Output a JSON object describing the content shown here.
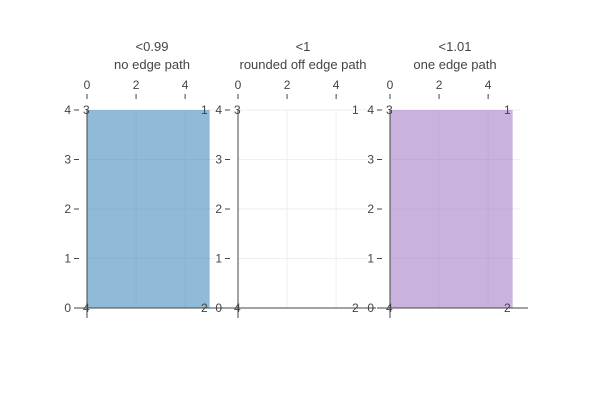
{
  "chart_data": [
    {
      "type": "area",
      "title_lines": [
        "<0.99",
        "no edge path"
      ],
      "fill": "#1f77b4",
      "fill_opacity": 0.5,
      "x_ticks": [
        0,
        2,
        4
      ],
      "y_ticks": [
        0,
        1,
        2,
        3,
        4
      ],
      "xlim": [
        0,
        5.3
      ],
      "ylim": [
        0,
        4
      ],
      "polygon": [
        {
          "x": 5,
          "y": 4
        },
        {
          "x": 5,
          "y": 0
        },
        {
          "x": 0,
          "y": 0
        },
        {
          "x": 0,
          "y": 4
        }
      ],
      "corner_labels": [
        {
          "x": 5,
          "y": 4,
          "text": "1"
        },
        {
          "x": 5,
          "y": 0,
          "text": "2"
        },
        {
          "x": 0,
          "y": 4,
          "text": "3"
        },
        {
          "x": 0,
          "y": 0,
          "text": "4"
        }
      ]
    },
    {
      "type": "area",
      "title_lines": [
        "<1",
        "rounded off edge path"
      ],
      "fill": "none",
      "fill_opacity": 0,
      "x_ticks": [
        0,
        2,
        4
      ],
      "y_ticks": [
        0,
        1,
        2,
        3,
        4
      ],
      "xlim": [
        0,
        5.3
      ],
      "ylim": [
        0,
        4
      ],
      "polygon": [],
      "corner_labels": [
        {
          "x": 5,
          "y": 4,
          "text": "1"
        },
        {
          "x": 5,
          "y": 0,
          "text": "2"
        },
        {
          "x": 0,
          "y": 4,
          "text": "3"
        },
        {
          "x": 0,
          "y": 0,
          "text": "4"
        }
      ]
    },
    {
      "type": "area",
      "title_lines": [
        "<1.01",
        "one edge path"
      ],
      "fill": "#9467bd",
      "fill_opacity": 0.5,
      "x_ticks": [
        0,
        2,
        4
      ],
      "y_ticks": [
        0,
        1,
        2,
        3,
        4
      ],
      "xlim": [
        0,
        5.3
      ],
      "ylim": [
        0,
        4
      ],
      "polygon": [
        {
          "x": 5,
          "y": 4
        },
        {
          "x": 5,
          "y": 0
        },
        {
          "x": 0,
          "y": 0
        },
        {
          "x": 0,
          "y": 4
        }
      ],
      "corner_labels": [
        {
          "x": 5,
          "y": 4,
          "text": "1"
        },
        {
          "x": 5,
          "y": 0,
          "text": "2"
        },
        {
          "x": 0,
          "y": 4,
          "text": "3"
        },
        {
          "x": 0,
          "y": 0,
          "text": "4"
        }
      ]
    }
  ]
}
